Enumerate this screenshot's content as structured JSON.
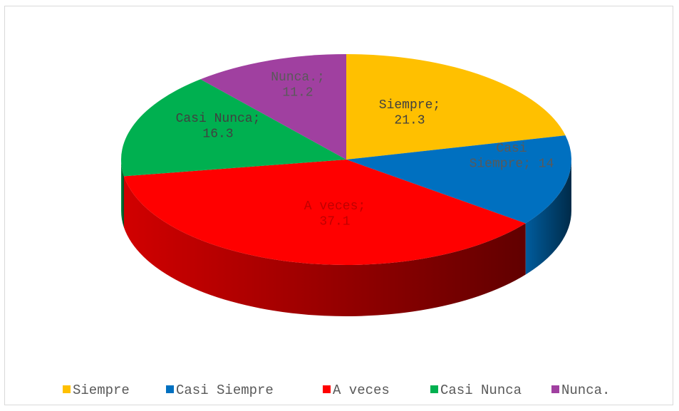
{
  "chart_data": {
    "type": "pie",
    "style": "3d",
    "categories": [
      "Siempre",
      "Casi Siempre",
      "A veces",
      "Casi Nunca",
      "Nunca."
    ],
    "values": [
      21.3,
      14,
      37.1,
      16.3,
      11.2
    ],
    "data_labels": [
      "Siempre;\n21.3",
      "Casi\nSiempre; 14",
      "A veces;\n37.1",
      "Casi Nunca;\n16.3",
      "Nunca.;\n11.2"
    ],
    "colors": [
      "#FFC000",
      "#0070C0",
      "#FF0000",
      "#00B050",
      "#A040A0"
    ],
    "legend": "bottom",
    "title": ""
  }
}
